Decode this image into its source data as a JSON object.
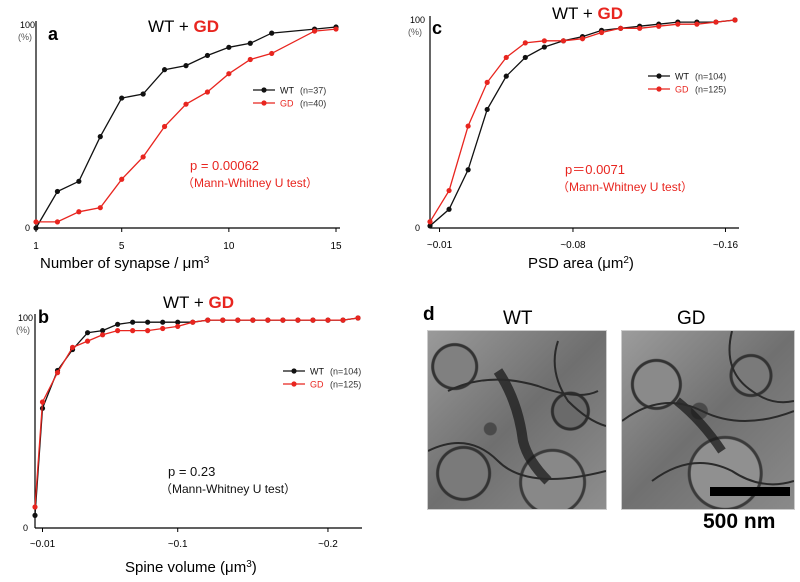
{
  "colors": {
    "wt": "#111111",
    "gd": "#e8251f"
  },
  "chart_data": [
    {
      "id": "a",
      "type": "line",
      "panel_label": "a",
      "title": {
        "part1": "WT",
        "plus": "+",
        "part2": "GD"
      },
      "xlabel": "Number of synapse / μm",
      "xlabel_sup": "3",
      "ylabel_top": "100",
      "ylabel_unit": "(%)",
      "ylabel_zero": "0",
      "xticks": [
        1,
        5,
        10,
        15
      ],
      "xlim": [
        1,
        15
      ],
      "ylim": [
        0,
        100
      ],
      "legend": [
        {
          "label": "WT",
          "n": "(n=37)"
        },
        {
          "label": "GD",
          "n": "(n=40)"
        }
      ],
      "stats": {
        "p": "p = 0.00062",
        "test": "（Mann-Whitney U test）"
      },
      "series": [
        {
          "name": "WT",
          "x": [
            1,
            2,
            3,
            4,
            5,
            6,
            7,
            8,
            9,
            10,
            11,
            12,
            14,
            15
          ],
          "values": [
            0,
            18,
            23,
            45,
            64,
            66,
            78,
            80,
            85,
            89,
            91,
            96,
            98,
            99
          ]
        },
        {
          "name": "GD",
          "x": [
            1,
            2,
            3,
            4,
            5,
            6,
            7,
            8,
            9,
            10,
            11,
            12,
            14,
            15
          ],
          "values": [
            3,
            3,
            8,
            10,
            24,
            35,
            50,
            61,
            67,
            76,
            83,
            86,
            97,
            98
          ]
        }
      ]
    },
    {
      "id": "b",
      "type": "line",
      "panel_label": "b",
      "title": {
        "part1": "WT",
        "plus": "+",
        "part2": "GD"
      },
      "xlabel": "Spine volume (μm",
      "xlabel_sup": "3",
      "xlabel_end": ")",
      "ylabel_top": "100",
      "ylabel_unit": "(%)",
      "ylabel_zero": "0",
      "xticks": [
        "~0.01",
        "~0.1",
        "~0.2"
      ],
      "xtick_values": [
        0.01,
        0.1,
        0.2
      ],
      "xlim": [
        0.005,
        0.22
      ],
      "ylim": [
        0,
        100
      ],
      "legend": [
        {
          "label": "WT",
          "n": "(n=104)"
        },
        {
          "label": "GD",
          "n": "(n=125)"
        }
      ],
      "stats": {
        "p": "p = 0.23",
        "test": "（Mann-Whitney U test）"
      },
      "series": [
        {
          "name": "WT",
          "x": [
            0.005,
            0.01,
            0.02,
            0.03,
            0.04,
            0.05,
            0.06,
            0.07,
            0.08,
            0.09,
            0.1,
            0.11,
            0.12,
            0.13,
            0.14,
            0.15,
            0.16,
            0.17,
            0.18,
            0.19,
            0.2,
            0.21,
            0.22
          ],
          "values": [
            6,
            57,
            75,
            85,
            93,
            94,
            97,
            98,
            98,
            98,
            98,
            98,
            99,
            99,
            99,
            99,
            99,
            99,
            99,
            99,
            99,
            99,
            100
          ]
        },
        {
          "name": "GD",
          "x": [
            0.005,
            0.01,
            0.02,
            0.03,
            0.04,
            0.05,
            0.06,
            0.07,
            0.08,
            0.09,
            0.1,
            0.11,
            0.12,
            0.13,
            0.14,
            0.15,
            0.16,
            0.17,
            0.18,
            0.19,
            0.2,
            0.21,
            0.22
          ],
          "values": [
            10,
            60,
            74,
            86,
            89,
            92,
            94,
            94,
            94,
            95,
            96,
            98,
            99,
            99,
            99,
            99,
            99,
            99,
            99,
            99,
            99,
            99,
            100
          ]
        }
      ]
    },
    {
      "id": "c",
      "type": "line",
      "panel_label": "c",
      "title": {
        "part1": "WT",
        "plus": "+",
        "part2": "GD"
      },
      "xlabel": "PSD area (μm",
      "xlabel_sup": "2",
      "xlabel_end": ")",
      "ylabel_top": "100",
      "ylabel_unit": "(%)",
      "ylabel_zero": "0",
      "xticks": [
        "~0.01",
        "~0.08",
        "~0.16"
      ],
      "xtick_values": [
        0.01,
        0.08,
        0.16
      ],
      "xlim": [
        0.005,
        0.165
      ],
      "ylim": [
        0,
        100
      ],
      "legend": [
        {
          "label": "WT",
          "n": "(n=104)"
        },
        {
          "label": "GD",
          "n": "(n=125)"
        }
      ],
      "stats": {
        "p": "p＝0.0071",
        "test": "（Mann-Whitney U test）"
      },
      "series": [
        {
          "name": "WT",
          "x": [
            0.005,
            0.015,
            0.025,
            0.035,
            0.045,
            0.055,
            0.065,
            0.075,
            0.085,
            0.095,
            0.105,
            0.115,
            0.125,
            0.135,
            0.145,
            0.155,
            0.165
          ],
          "values": [
            1,
            9,
            28,
            57,
            73,
            82,
            87,
            90,
            92,
            95,
            96,
            97,
            98,
            99,
            99,
            99,
            100
          ]
        },
        {
          "name": "GD",
          "x": [
            0.005,
            0.015,
            0.025,
            0.035,
            0.045,
            0.055,
            0.065,
            0.075,
            0.085,
            0.095,
            0.105,
            0.115,
            0.125,
            0.135,
            0.145,
            0.155,
            0.165
          ],
          "values": [
            3,
            18,
            49,
            70,
            82,
            89,
            90,
            90,
            91,
            94,
            96,
            96,
            97,
            98,
            98,
            99,
            100
          ]
        }
      ]
    }
  ],
  "panel_d": {
    "label": "d",
    "wt_label": "WT",
    "gd_label": "GD",
    "scale_bar": "500 nm"
  }
}
